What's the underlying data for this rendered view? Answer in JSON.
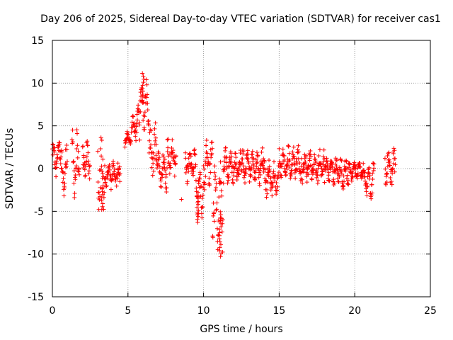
{
  "chart_data": {
    "type": "scatter",
    "title": "Day 206 of 2025, Sidereal Day-to-day VTEC variation (SDTVAR) for receiver cas1",
    "xlabel": "GPS time / hours",
    "ylabel": "SDTVAR / TECUs",
    "xlim": [
      0,
      25
    ],
    "ylim": [
      -15,
      15
    ],
    "xticks": [
      0,
      5,
      10,
      15,
      20,
      25
    ],
    "yticks": [
      -15,
      -10,
      -5,
      0,
      5,
      10,
      15
    ],
    "grid": true,
    "marker": "+",
    "color": "#ff0000",
    "segments": [
      {
        "x0": 0.0,
        "x1": 0.55,
        "ymin": -1.0,
        "ymax": 4.0
      },
      {
        "x0": 0.55,
        "x1": 1.0,
        "ymin": -4.0,
        "ymax": 3.5
      },
      {
        "x0": 1.3,
        "x1": 1.8,
        "ymin": -3.5,
        "ymax": 4.8
      },
      {
        "x0": 2.0,
        "x1": 2.5,
        "ymin": -1.5,
        "ymax": 3.5
      },
      {
        "x0": 3.0,
        "x1": 3.5,
        "ymin": -5.0,
        "ymax": 4.5
      },
      {
        "x0": 3.5,
        "x1": 4.5,
        "ymin": -2.5,
        "ymax": 1.0
      },
      {
        "x0": 4.8,
        "x1": 5.2,
        "ymin": 2.5,
        "ymax": 4.5
      },
      {
        "x0": 5.2,
        "x1": 5.8,
        "ymin": 2.5,
        "ymax": 7.5
      },
      {
        "x0": 5.8,
        "x1": 6.4,
        "ymin": 4.0,
        "ymax": 11.0
      },
      {
        "x0": 6.4,
        "x1": 7.0,
        "ymin": -1.5,
        "ymax": 5.5
      },
      {
        "x0": 7.0,
        "x1": 7.6,
        "ymin": -2.8,
        "ymax": 2.5
      },
      {
        "x0": 7.6,
        "x1": 8.2,
        "ymin": -1.0,
        "ymax": 4.0
      },
      {
        "x0": 8.8,
        "x1": 9.5,
        "ymin": -2.0,
        "ymax": 3.0
      },
      {
        "x0": 9.5,
        "x1": 10.0,
        "ymin": -6.3,
        "ymax": 1.0
      },
      {
        "x0": 10.0,
        "x1": 10.6,
        "ymin": -2.5,
        "ymax": 3.5
      },
      {
        "x0": 10.6,
        "x1": 11.3,
        "ymin": -10.2,
        "ymax": 2.0
      },
      {
        "x0": 11.3,
        "x1": 12.5,
        "ymin": -2.0,
        "ymax": 2.5
      },
      {
        "x0": 12.5,
        "x1": 14.0,
        "ymin": -2.0,
        "ymax": 2.5
      },
      {
        "x0": 14.0,
        "x1": 15.0,
        "ymin": -3.5,
        "ymax": 1.0
      },
      {
        "x0": 15.0,
        "x1": 16.5,
        "ymin": -1.5,
        "ymax": 2.8
      },
      {
        "x0": 16.5,
        "x1": 18.0,
        "ymin": -2.0,
        "ymax": 2.5
      },
      {
        "x0": 18.0,
        "x1": 19.0,
        "ymin": -2.0,
        "ymax": 1.5
      },
      {
        "x0": 19.0,
        "x1": 19.6,
        "ymin": -2.5,
        "ymax": 1.5
      },
      {
        "x0": 19.6,
        "x1": 20.6,
        "ymin": -1.5,
        "ymax": 1.0
      },
      {
        "x0": 20.6,
        "x1": 21.3,
        "ymin": -4.0,
        "ymax": 1.2
      },
      {
        "x0": 22.0,
        "x1": 22.7,
        "ymin": -2.5,
        "ymax": 3.0
      }
    ],
    "spikes": [
      {
        "x": 3.3,
        "ymin": -4.8,
        "ymax": -2.0
      },
      {
        "x": 6.0,
        "ymin": 8.0,
        "ymax": 11.2
      },
      {
        "x": 9.6,
        "ymin": -6.3,
        "ymax": -2.5
      },
      {
        "x": 11.1,
        "ymin": -10.3,
        "ymax": -5.0
      },
      {
        "x": 8.5,
        "ymin": -3.6,
        "ymax": -3.4
      }
    ]
  }
}
